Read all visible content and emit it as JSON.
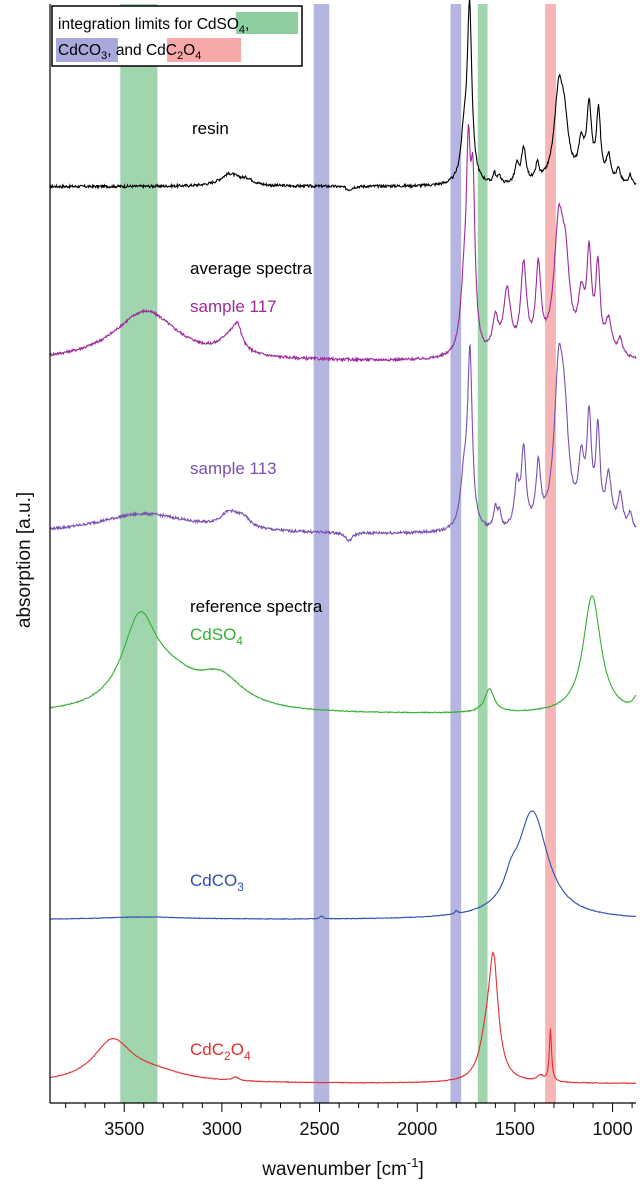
{
  "chart_data": {
    "type": "line",
    "xlabel": "wavenumber [cm⁻¹]",
    "xlabel_base": "wavenumber [cm",
    "xlabel_sup": "-1",
    "xlabel_end": "]",
    "ylabel": "absorption [a.u.]",
    "xlim": [
      3880,
      880
    ],
    "x_reversed": true,
    "grid": false,
    "x_ticks": [
      3500,
      3000,
      2500,
      2000,
      1500,
      1000
    ],
    "x_tick_labels": [
      "3500",
      "3000",
      "2500",
      "2000",
      "1500",
      "1000"
    ],
    "section_labels": {
      "average": "average spectra",
      "reference": "reference spectra"
    },
    "legend": {
      "placement": "top-left",
      "line1_prefix": "integration limits for ",
      "line1_suffix": ",",
      "mid": ", and ",
      "cdso4": {
        "base": "CdSO",
        "sub": "4",
        "color": "#8fceA0"
      },
      "cdco3": {
        "base": "CdCO",
        "sub": "3",
        "color": "#a8a8dc"
      },
      "cdc2o4": {
        "base": "CdC",
        "sub1": "2",
        "mid": "O",
        "sub2": "4",
        "color": "#f7a8a8"
      }
    },
    "integration_bands": [
      {
        "compound": "CdSO4",
        "x1": 3520,
        "x2": 3330,
        "color": "#8fcea0"
      },
      {
        "compound": "CdSO4",
        "x1": 1690,
        "x2": 1640,
        "color": "#8fcea0"
      },
      {
        "compound": "CdCO3",
        "x1": 2530,
        "x2": 2450,
        "color": "#a8a8dc"
      },
      {
        "compound": "CdCO3",
        "x1": 1830,
        "x2": 1775,
        "color": "#a8a8dc"
      },
      {
        "compound": "CdC2O4",
        "x1": 1345,
        "x2": 1290,
        "color": "#f7a8a8"
      }
    ],
    "series": [
      {
        "name": "resin",
        "label_base": "resin",
        "label_sub": "",
        "label_end": "",
        "color": "#000000",
        "label_color": "#000000",
        "baseline": 0.02,
        "noise": 0.008,
        "peaks": [
          [
            2960,
            0.07,
            60
          ],
          [
            2870,
            0.03,
            40
          ],
          [
            2350,
            -0.02,
            20
          ],
          [
            1732,
            1.0,
            14
          ],
          [
            1760,
            0.25,
            20
          ],
          [
            1605,
            0.06,
            8
          ],
          [
            1580,
            0.05,
            8
          ],
          [
            1490,
            0.1,
            12
          ],
          [
            1455,
            0.2,
            14
          ],
          [
            1385,
            0.1,
            10
          ],
          [
            1275,
            0.52,
            28
          ],
          [
            1245,
            0.25,
            25
          ],
          [
            1160,
            0.2,
            18
          ],
          [
            1120,
            0.42,
            15
          ],
          [
            1072,
            0.4,
            13
          ],
          [
            1020,
            0.15,
            15
          ],
          [
            970,
            0.08,
            12
          ],
          [
            910,
            0.06,
            10
          ]
        ]
      },
      {
        "name": "sample 117",
        "label_base": "sample 117",
        "label_sub": "",
        "label_end": "",
        "color": "#9c2a9c",
        "label_color": "#9c2a9c",
        "baseline": 0.03,
        "noise": 0.008,
        "peaks": [
          [
            3390,
            0.3,
            200
          ],
          [
            2960,
            0.1,
            60
          ],
          [
            2920,
            0.12,
            25
          ],
          [
            1738,
            1.0,
            13
          ],
          [
            1715,
            0.9,
            13
          ],
          [
            1760,
            0.35,
            22
          ],
          [
            1600,
            0.2,
            18
          ],
          [
            1540,
            0.38,
            22
          ],
          [
            1455,
            0.52,
            18
          ],
          [
            1380,
            0.5,
            16
          ],
          [
            1275,
            0.75,
            30
          ],
          [
            1240,
            0.4,
            25
          ],
          [
            1160,
            0.3,
            20
          ],
          [
            1120,
            0.55,
            15
          ],
          [
            1075,
            0.5,
            14
          ],
          [
            1020,
            0.2,
            20
          ],
          [
            960,
            0.1,
            15
          ]
        ]
      },
      {
        "name": "sample 113",
        "label_base": "sample 113",
        "label_sub": "",
        "label_end": "",
        "color": "#7a4fb0",
        "label_color": "#7a4fb0",
        "baseline": 0.02,
        "noise": 0.008,
        "peaks": [
          [
            3400,
            0.12,
            300
          ],
          [
            2960,
            0.09,
            60
          ],
          [
            2890,
            0.05,
            40
          ],
          [
            2350,
            -0.05,
            20
          ],
          [
            1730,
            1.0,
            14
          ],
          [
            1760,
            0.3,
            22
          ],
          [
            1600,
            0.12,
            10
          ],
          [
            1580,
            0.1,
            10
          ],
          [
            1490,
            0.25,
            15
          ],
          [
            1455,
            0.45,
            14
          ],
          [
            1380,
            0.35,
            14
          ],
          [
            1275,
            0.9,
            28
          ],
          [
            1245,
            0.45,
            25
          ],
          [
            1160,
            0.35,
            18
          ],
          [
            1120,
            0.6,
            14
          ],
          [
            1075,
            0.55,
            13
          ],
          [
            1020,
            0.3,
            18
          ],
          [
            960,
            0.2,
            15
          ],
          [
            910,
            0.1,
            12
          ]
        ]
      },
      {
        "name": "CdSO4",
        "label_base": "CdSO",
        "label_sub": "4",
        "label_end": "",
        "color": "#35b035",
        "label_color": "#35b035",
        "baseline": 0.02,
        "noise": 0.004,
        "peaks": [
          [
            3420,
            0.75,
            110
          ],
          [
            3250,
            0.2,
            150
          ],
          [
            3010,
            0.27,
            150
          ],
          [
            1630,
            0.2,
            30
          ],
          [
            1105,
            1.0,
            55
          ],
          [
            880,
            0.1,
            20
          ]
        ]
      },
      {
        "name": "CdCO3",
        "label_base": "CdCO",
        "label_sub": "3",
        "label_end": "",
        "color": "#2f4fb0",
        "label_color": "#2f4fb0",
        "baseline": 0.01,
        "noise": 0.003,
        "peaks": [
          [
            3400,
            0.025,
            300
          ],
          [
            2490,
            0.025,
            10
          ],
          [
            1800,
            0.03,
            8
          ],
          [
            1410,
            1.0,
            95
          ],
          [
            1520,
            0.15,
            40
          ]
        ]
      },
      {
        "name": "CdC2O4",
        "label_base": "CdC",
        "label_sub": "2",
        "label_end": "O",
        "label_sub2": "4",
        "color": "#e03030",
        "label_color": "#e03030",
        "baseline": 0.02,
        "noise": 0.003,
        "peaks": [
          [
            3560,
            0.35,
            120
          ],
          [
            3350,
            0.08,
            200
          ],
          [
            2930,
            0.03,
            20
          ],
          [
            1610,
            1.0,
            30
          ],
          [
            1650,
            0.25,
            40
          ],
          [
            1318,
            0.45,
            7
          ],
          [
            1370,
            0.05,
            20
          ]
        ]
      }
    ]
  }
}
